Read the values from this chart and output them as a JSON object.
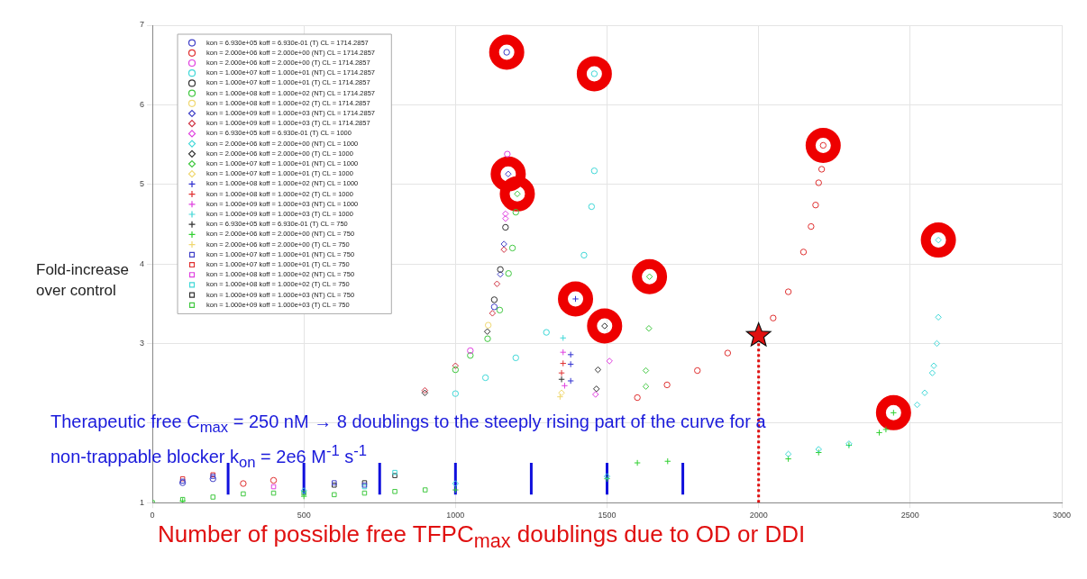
{
  "chart_data": {
    "type": "scatter",
    "xlabel": "Number of possible free TFPC$_{max}$ doublings due to OD or DDI",
    "ylabel": "Fold-increase over control",
    "annotations": [
      "Therapeutic free C$_{max}$ = 250 nM → 8 doublings to the steeply rising part of the curve for a non-trappable blocker k$_{on}$ = 2e6 M$^{-1}$ s$^{-1}$"
    ],
    "xlim": [
      0,
      3000
    ],
    "xticks": [
      0,
      500,
      1000,
      1500,
      2000,
      2500,
      3000
    ],
    "ylim": [
      1,
      7
    ],
    "yticks": [
      1,
      {
        "value": 2,
        "label": null
      },
      3,
      4,
      5,
      6,
      7
    ],
    "grid": true,
    "legend": "top left",
    "series": [
      {
        "name": "kon = 6.930e+05 koff = 6.930e-01 (T) CL = 1714.2857",
        "color": "#4040c8",
        "marker": "circle",
        "x": [
          100,
          200,
          1128,
          1169
        ],
        "values": [
          1.25,
          1.3,
          3.46,
          6.66
        ]
      },
      {
        "name": "kon = 2.000e+06 koff = 2.000e+00 (NT) CL = 1714.2857",
        "color": "#e03030",
        "marker": "circle",
        "x": [
          300,
          400,
          1600,
          1698,
          1798,
          1898,
          2048,
          2098,
          2148,
          2173,
          2188,
          2198,
          2208,
          2213
        ],
        "values": [
          1.24,
          1.28,
          2.32,
          2.48,
          2.66,
          2.88,
          3.32,
          3.65,
          4.15,
          4.47,
          4.74,
          5.02,
          5.19,
          5.49
        ]
      },
      {
        "name": "kon = 2.000e+06 koff = 2.000e+00 (T) CL = 1714.2857",
        "color": "#e040e0",
        "marker": "circle",
        "x": [
          1049,
          1171
        ],
        "values": [
          2.91,
          5.38
        ]
      },
      {
        "name": "kon = 1.000e+07 koff = 1.000e+01 (NT) CL = 1714.2857",
        "color": "#40d8d8",
        "marker": "circle",
        "x": [
          1000,
          1099,
          1199,
          1300,
          1424,
          1449,
          1458,
          1458
        ],
        "values": [
          2.37,
          2.57,
          2.82,
          3.14,
          4.11,
          4.72,
          5.17,
          6.39
        ]
      },
      {
        "name": "kon = 1.000e+07 koff = 1.000e+01 (T) CL = 1714.2857",
        "color": "#303030",
        "marker": "circle",
        "x": [
          1128,
          1148,
          1165
        ],
        "values": [
          3.55,
          3.93,
          4.46
        ]
      },
      {
        "name": "kon = 1.000e+08 koff = 1.000e+02 (NT) CL = 1714.2857",
        "color": "#40c840",
        "marker": "circle",
        "x": [
          1000,
          1049,
          1106,
          1146,
          1175,
          1188,
          1199
        ],
        "values": [
          2.67,
          2.85,
          3.06,
          3.42,
          3.88,
          4.2,
          4.65
        ]
      },
      {
        "name": "kon = 1.000e+08 koff = 1.000e+02 (T) CL = 1714.2857",
        "color": "#f0d870",
        "marker": "circle",
        "x": [
          1108
        ],
        "values": [
          3.23
        ]
      },
      {
        "name": "kon = 1.000e+09 koff = 1.000e+03 (NT) CL = 1714.2857",
        "color": "#4040c8",
        "marker": "diamond",
        "x": [
          1148,
          1160,
          1174
        ],
        "values": [
          3.87,
          4.25,
          5.13
        ]
      },
      {
        "name": "kon = 1.000e+09 koff = 1.000e+03 (T) CL = 1714.2857",
        "color": "#d03040",
        "marker": "diamond",
        "x": [
          899,
          1000,
          1122,
          1137,
          1160
        ],
        "values": [
          2.41,
          2.72,
          3.38,
          3.75,
          4.18
        ]
      },
      {
        "name": "kon = 6.930e+05 koff = 6.930e-01 (T) CL = 1000",
        "color": "#e040e0",
        "marker": "diamond",
        "x": [
          1165,
          1165,
          1462,
          1508
        ],
        "values": [
          4.57,
          4.63,
          2.36,
          2.78
        ]
      },
      {
        "name": "kon = 2.000e+06 koff = 2.000e+00 (NT) CL = 1000",
        "color": "#40d8d8",
        "marker": "diamond",
        "x": [
          500,
          1000,
          1500,
          2098,
          2198,
          2298,
          2523,
          2548,
          2573,
          2578,
          2588,
          2593,
          2593
        ],
        "values": [
          1.15,
          1.24,
          1.33,
          1.61,
          1.67,
          1.74,
          2.23,
          2.38,
          2.63,
          2.72,
          3.0,
          3.33,
          4.3
        ]
      },
      {
        "name": "kon = 2.000e+06 koff = 2.000e+00 (T) CL = 1000",
        "color": "#303030",
        "marker": "diamond",
        "x": [
          899,
          1105,
          1465,
          1470,
          1492
        ],
        "values": [
          2.38,
          3.15,
          2.43,
          2.67,
          3.22
        ]
      },
      {
        "name": "kon = 1.000e+07 koff = 1.000e+01 (NT) CL = 1000",
        "color": "#40c840",
        "marker": "diamond",
        "x": [
          1204,
          1628,
          1628,
          1638,
          1640
        ],
        "values": [
          4.88,
          2.46,
          2.66,
          3.19,
          3.84
        ]
      },
      {
        "name": "kon = 1.000e+07 koff = 1.000e+01 (T) CL = 1000",
        "color": "#f0d870",
        "marker": "diamond",
        "x": [
          1350
        ],
        "values": [
          2.38
        ]
      },
      {
        "name": "kon = 1.000e+08 koff = 1.000e+02 (NT) CL = 1000",
        "color": "#3030d0",
        "marker": "cross",
        "x": [
          1380,
          1380,
          1380,
          1396
        ],
        "values": [
          2.53,
          2.74,
          2.86,
          3.56
        ]
      },
      {
        "name": "kon = 1.000e+08 koff = 1.000e+02 (T) CL = 1000",
        "color": "#e03030",
        "marker": "cross",
        "x": [
          1350,
          1355
        ],
        "values": [
          2.63,
          2.75
        ]
      },
      {
        "name": "kon = 1.000e+09 koff = 1.000e+03 (NT) CL = 1000",
        "color": "#e040e0",
        "marker": "cross",
        "x": [
          1355,
          1360
        ],
        "values": [
          2.89,
          2.47
        ]
      },
      {
        "name": "kon = 1.000e+09 koff = 1.000e+03 (T) CL = 1000",
        "color": "#40d8d8",
        "marker": "cross",
        "x": [
          1355
        ],
        "values": [
          3.07
        ]
      },
      {
        "name": "kon = 6.930e+05 koff = 6.930e-01 (T) CL = 750",
        "color": "#303030",
        "marker": "cross",
        "x": [
          1350
        ],
        "values": [
          2.55
        ]
      },
      {
        "name": "kon = 2.000e+06 koff = 2.000e+00 (NT) CL = 750",
        "color": "#30d030",
        "marker": "cross",
        "x": [
          100,
          500,
          1000,
          1500,
          1600,
          1700,
          2098,
          2198,
          2298,
          2398,
          2420,
          2445
        ],
        "values": [
          1.02,
          1.08,
          1.16,
          1.3,
          1.5,
          1.52,
          1.55,
          1.63,
          1.72,
          1.88,
          1.92,
          2.13
        ]
      },
      {
        "name": "kon = 2.000e+06 koff = 2.000e+00 (T) CL = 750",
        "color": "#f0d870",
        "marker": "cross",
        "x": [
          1345
        ],
        "values": [
          2.33
        ]
      },
      {
        "name": "kon = 1.000e+07 koff = 1.000e+01 (NT) CL = 750",
        "color": "#4040c8",
        "marker": "square",
        "x": [
          100,
          200,
          600,
          700
        ],
        "values": [
          1.27,
          1.33,
          1.25,
          1.22
        ]
      },
      {
        "name": "kon = 1.000e+07 koff = 1.000e+01 (T) CL = 750",
        "color": "#e03030",
        "marker": "square",
        "x": [
          100,
          200
        ],
        "values": [
          1.3,
          1.35
        ]
      },
      {
        "name": "kon = 1.000e+08 koff = 1.000e+02 (NT) CL = 750",
        "color": "#e040e0",
        "marker": "square",
        "x": [
          400
        ],
        "values": [
          1.2
        ]
      },
      {
        "name": "kon = 1.000e+08 koff = 1.000e+02 (T) CL = 750",
        "color": "#40d8d8",
        "marker": "square",
        "x": [
          700,
          800
        ],
        "values": [
          1.2,
          1.38
        ]
      },
      {
        "name": "kon = 1.000e+09 koff = 1.000e+03 (NT) CL = 750",
        "color": "#303030",
        "marker": "square",
        "x": [
          600,
          700,
          800
        ],
        "values": [
          1.22,
          1.25,
          1.34
        ]
      },
      {
        "name": "kon = 1.000e+09 koff = 1.000e+03 (T) CL = 750",
        "color": "#40c840",
        "marker": "square",
        "x": [
          0,
          100,
          200,
          300,
          400,
          500,
          600,
          700,
          800,
          900
        ],
        "values": [
          1.0,
          1.04,
          1.07,
          1.11,
          1.12,
          1.12,
          1.1,
          1.12,
          1.14,
          1.16
        ]
      },
      {
        "type": "scatter",
        "color": "#e01010",
        "marker": "star",
        "x": [
          2000
        ],
        "values": [
          3.1
        ]
      },
      {
        "type": "line",
        "color": "#e01010",
        "marker": "none",
        "line_style": "dotted",
        "x": [
          2000,
          2000
        ],
        "values": [
          1,
          3.1
        ]
      },
      {
        "type": "line",
        "color": "#1010dd",
        "marker": "none",
        "line_style": "solid",
        "x": [
          250,
          250,
          null,
          500,
          500,
          null,
          750,
          750,
          null,
          1000,
          1000,
          null,
          1250,
          1250,
          null,
          1500,
          1500,
          null,
          1750,
          1750
        ],
        "values": [
          1.1,
          1.5,
          null,
          1.1,
          1.5,
          null,
          1.1,
          1.5,
          null,
          1.1,
          1.5,
          null,
          1.1,
          1.5,
          null,
          1.1,
          1.5,
          null,
          1.1,
          1.5
        ]
      },
      {
        "type": "bubble",
        "color": "#ee0000",
        "marker": "circle",
        "x": [
          1169,
          1458,
          1174,
          1204,
          2213,
          2593,
          1640,
          1396,
          1492,
          2445
        ],
        "values": [
          6.66,
          6.39,
          5.13,
          4.88,
          5.49,
          4.3,
          3.84,
          3.56,
          3.22,
          2.13
        ],
        "sizes": [
          1,
          1,
          1,
          1,
          1,
          1,
          1,
          1,
          1,
          1
        ]
      }
    ]
  }
}
